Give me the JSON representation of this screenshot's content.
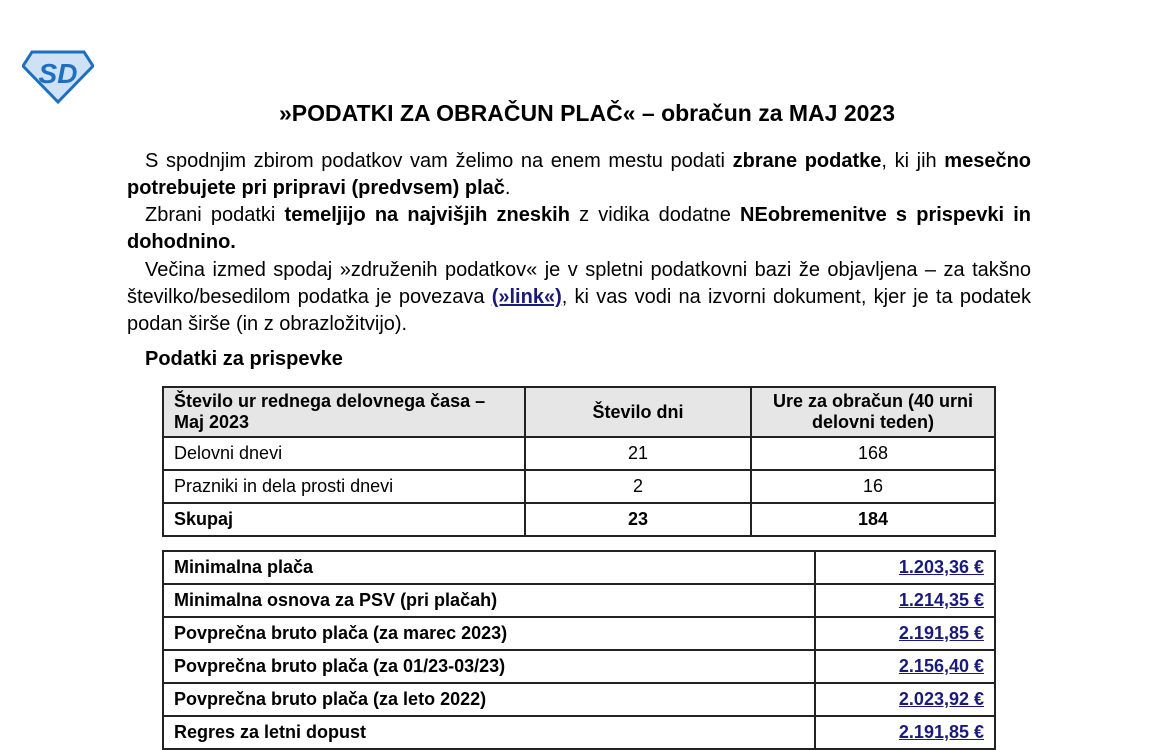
{
  "logo_text": "SD",
  "title": "»PODATKI ZA OBRAČUN PLAČ« – obračun za MAJ 2023",
  "p1": [
    "S spodnjim zbirom podatkov vam želimo na enem mestu podati ",
    "zbrane podatke",
    ", ki jih ",
    "mesečno potrebujete pri pripravi (predvsem) plač",
    "."
  ],
  "p2": [
    "Zbrani podatki ",
    "temeljijo na najvišjih zneskih",
    " z vidika dodatne ",
    "NEobremenitve s prispevki in dohodnino."
  ],
  "p3": [
    "Večina izmed spodaj »združenih podatkov« je v spletni podatkovni bazi že objavljena – za takšno številko/besedilom podatka je povezava ",
    "(»link«)",
    ", ki vas vodi na izvorni dokument, kjer je ta podatek podan širše (in z obrazložitvijo)."
  ],
  "section_title": "Podatki za prispevke",
  "hours_table": {
    "headers": [
      "Število ur rednega delovnega časa – Maj 2023",
      "Število dni",
      "Ure za obračun (40 urni delovni teden)"
    ],
    "rows": [
      [
        "Delovni dnevi",
        "21",
        "168"
      ],
      [
        "Prazniki in dela prosti dnevi",
        "2",
        "16"
      ],
      [
        "Skupaj",
        "23",
        "184"
      ]
    ]
  },
  "amounts_table": [
    [
      "Minimalna plača",
      "1.203,36 €"
    ],
    [
      "Minimalna osnova za PSV (pri plačah)",
      "1.214,35 €"
    ],
    [
      "Povprečna bruto plača (za marec 2023)",
      "2.191,85 €"
    ],
    [
      "Povprečna bruto plača (za 01/23-03/23)",
      "2.156,40 €"
    ],
    [
      "Povprečna bruto plača (za leto 2022)",
      "2.023,92 €"
    ],
    [
      "Regres za letni dopust",
      "2.191,85 €"
    ]
  ],
  "colors": {
    "link": "#1a1a7a",
    "logo": "#1f6fbf",
    "header_bg": "#e6e6e6"
  }
}
